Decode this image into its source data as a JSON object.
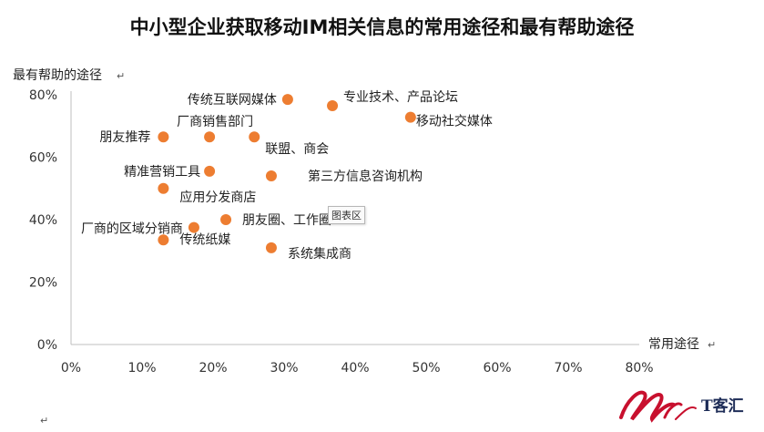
{
  "chart_data": {
    "type": "scatter",
    "title": "中小型企业获取移动IM相关信息的常用途径和最有帮助途径",
    "xlabel": "常用途径",
    "ylabel": "最有帮助的途径",
    "xlim": [
      0,
      0.8
    ],
    "ylim": [
      0,
      0.8
    ],
    "x_ticks": [
      "0%",
      "10%",
      "20%",
      "30%",
      "40%",
      "50%",
      "60%",
      "70%",
      "80%"
    ],
    "y_ticks": [
      "0%",
      "20%",
      "40%",
      "60%",
      "80%"
    ],
    "grid": false,
    "marker_color": "#ed7d31",
    "points": [
      {
        "label": "传统互联网媒体",
        "x": 0.305,
        "y": 0.785
      },
      {
        "label": "专业技术、产品论坛",
        "x": 0.368,
        "y": 0.765
      },
      {
        "label": "移动社交媒体",
        "x": 0.478,
        "y": 0.728
      },
      {
        "label": "朋友推荐",
        "x": 0.13,
        "y": 0.665
      },
      {
        "label": "厂商销售部门",
        "x": 0.195,
        "y": 0.665
      },
      {
        "label": "联盟、商会",
        "x": 0.258,
        "y": 0.665
      },
      {
        "label": "精准营销工具",
        "x": 0.195,
        "y": 0.555
      },
      {
        "label": "第三方信息咨询机构",
        "x": 0.282,
        "y": 0.54
      },
      {
        "label": "应用分发商店",
        "x": 0.13,
        "y": 0.5
      },
      {
        "label": "朋友圈、工作圈",
        "x": 0.218,
        "y": 0.4
      },
      {
        "label": "厂商的区域分销商",
        "x": 0.173,
        "y": 0.375
      },
      {
        "label": "传统纸媒",
        "x": 0.13,
        "y": 0.335
      },
      {
        "label": "系统集成商",
        "x": 0.282,
        "y": 0.31
      }
    ]
  },
  "tooltip": "图表区",
  "paragraph_mark": "↵",
  "logo": {
    "text": "T客汇",
    "brand_color": "#c8102e",
    "text_color": "#1d2c57"
  }
}
